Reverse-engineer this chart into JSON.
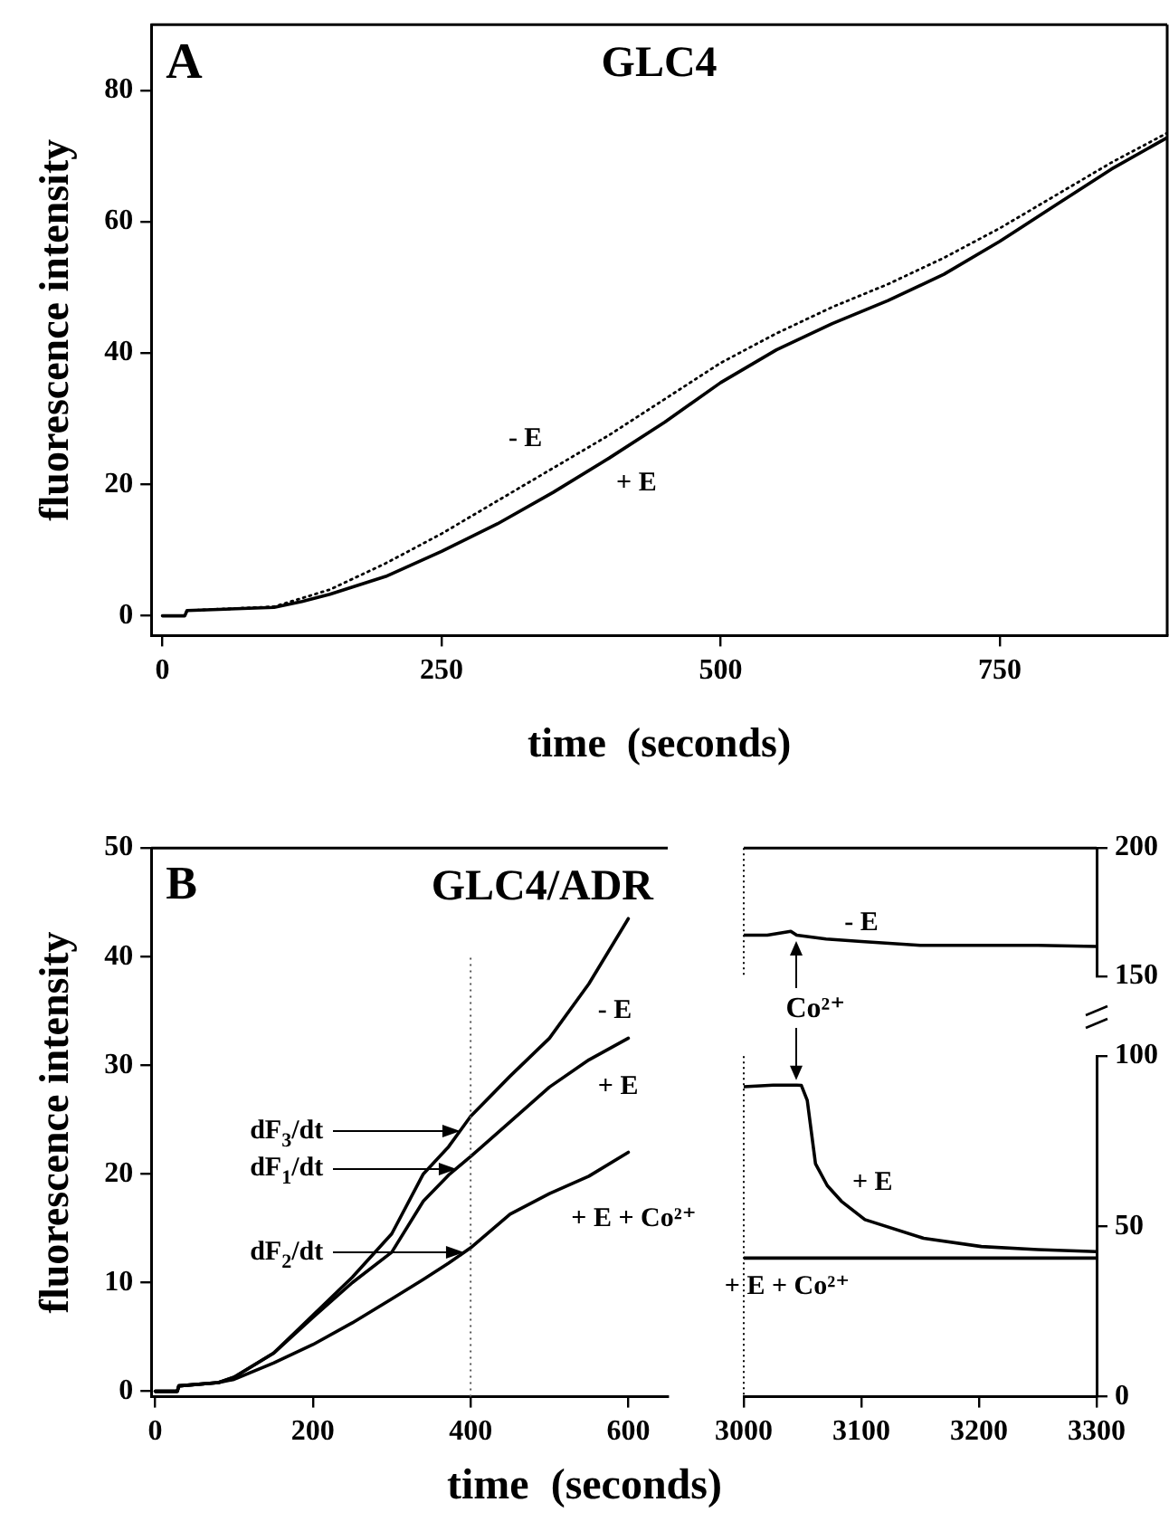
{
  "chart_data": [
    {
      "type": "line",
      "title": "GLC4",
      "xlabel": "time  (seconds)",
      "ylabel": "fluorescence intensity",
      "annotations": [
        "A"
      ],
      "x": [
        0,
        20,
        22,
        100,
        125,
        150,
        200,
        250,
        300,
        350,
        400,
        450,
        500,
        550,
        600,
        650,
        700,
        750,
        800,
        850,
        900
      ],
      "series": [
        {
          "name": "- E",
          "color": "#000000",
          "line_style": "dotted",
          "values": [
            0,
            0,
            0.8,
            1.4,
            2.7,
            4,
            8,
            12.5,
            17.5,
            22.5,
            27.5,
            33,
            38.5,
            43,
            47,
            50.5,
            54.5,
            59,
            64,
            69,
            73.5
          ]
        },
        {
          "name": "+ E",
          "color": "#000000",
          "values": [
            0,
            0,
            0.8,
            1.3,
            2.2,
            3.3,
            6,
            9.8,
            14,
            18.8,
            24,
            29.5,
            35.5,
            40.5,
            44.5,
            48,
            52,
            57,
            62.5,
            68,
            72.8
          ]
        }
      ],
      "xlim": [
        -10,
        900
      ],
      "xticks": [
        0,
        250,
        500,
        750
      ],
      "ylim": [
        -3,
        90
      ],
      "yticks": [
        0,
        20,
        40,
        60,
        80
      ],
      "grid": false,
      "legend": false,
      "marker": "none",
      "line_style": "solid"
    },
    {
      "type": "line",
      "title": "GLC4/ADR",
      "xlabel": "time  (seconds)",
      "ylabel": "fluorescence intensity",
      "annotations": [
        "B",
        "dF$_{3}$/dt",
        "dF$_{1}$/dt",
        "dF$_{2}$/dt"
      ],
      "x": [
        0,
        28,
        30,
        80,
        100,
        150,
        200,
        250,
        300,
        340,
        372,
        400,
        450,
        500,
        550,
        600
      ],
      "series": [
        {
          "name": "- E",
          "color": "#000000",
          "values": [
            0,
            0,
            0.5,
            0.8,
            1.3,
            3.5,
            7,
            10.5,
            14.5,
            20,
            22.5,
            25.3,
            29,
            32.5,
            37.5,
            43.5
          ]
        },
        {
          "name": "+ E",
          "color": "#000000",
          "values": [
            0,
            0,
            0.5,
            0.8,
            1.3,
            3.5,
            6.8,
            10,
            12.8,
            17.5,
            19.9,
            21.6,
            24.8,
            28,
            30.5,
            32.5
          ]
        },
        {
          "name": "+ E + Co²⁺",
          "color": "#000000",
          "values": [
            0,
            0,
            0.5,
            0.8,
            1.1,
            2.6,
            4.3,
            6.3,
            8.5,
            10.3,
            11.8,
            13.2,
            16.3,
            18.2,
            19.8,
            22
          ]
        }
      ],
      "xlim": [
        -5,
        650
      ],
      "xticks": [
        0,
        200,
        400,
        600
      ],
      "ylim": [
        -0.5,
        50
      ],
      "yticks": [
        0,
        10,
        20,
        30,
        40,
        50
      ],
      "ref_lines": [
        {
          "axis": "x",
          "value": 400,
          "line_style": "dotted"
        }
      ],
      "grid": false,
      "legend": false,
      "marker": "none",
      "line_style": "solid"
    },
    {
      "type": "line",
      "x": [
        3000,
        3020,
        3040,
        3045,
        3070,
        3100,
        3150,
        3200,
        3250,
        3300
      ],
      "series": [
        {
          "name": "- E",
          "color": "#000000",
          "values": [
            166,
            166,
            167.5,
            166,
            164.5,
            163.5,
            162,
            162,
            162,
            161.6
          ]
        }
      ],
      "xlim": [
        3000,
        3300
      ],
      "xticks": [
        3000,
        3100,
        3200,
        3300
      ],
      "ylim": [
        150,
        200
      ],
      "yticks": [
        150,
        200
      ],
      "tick_labels": "y",
      "grid": false,
      "legend": false,
      "marker": "none",
      "line_style": "solid"
    },
    {
      "type": "line",
      "annotations": [
        "Co²⁺"
      ],
      "x": [
        3000,
        3025,
        3045,
        3049,
        3054,
        3061,
        3071,
        3083,
        3103,
        3153,
        3202,
        3250,
        3300
      ],
      "series": [
        {
          "name": "+ E",
          "color": "#000000",
          "values": [
            91,
            91.5,
            91.5,
            91.4,
            87,
            68.4,
            62,
            57.4,
            52,
            46.5,
            44.1,
            43.2,
            42.6
          ]
        },
        {
          "name": "+ E + Co²⁺",
          "color": "#000000",
          "values": [
            40.7,
            40.7,
            40.7,
            40.7,
            40.7,
            40.7,
            40.7,
            40.7,
            40.7,
            40.7,
            40.7,
            40.7,
            40.7
          ]
        }
      ],
      "xlim": [
        3000,
        3300
      ],
      "xticks": [
        3000,
        3100,
        3200,
        3300
      ],
      "ylim": [
        0,
        100
      ],
      "yticks": [
        0,
        50,
        100
      ],
      "grid": false,
      "legend": false,
      "marker": "none",
      "line_style": "solid"
    }
  ]
}
